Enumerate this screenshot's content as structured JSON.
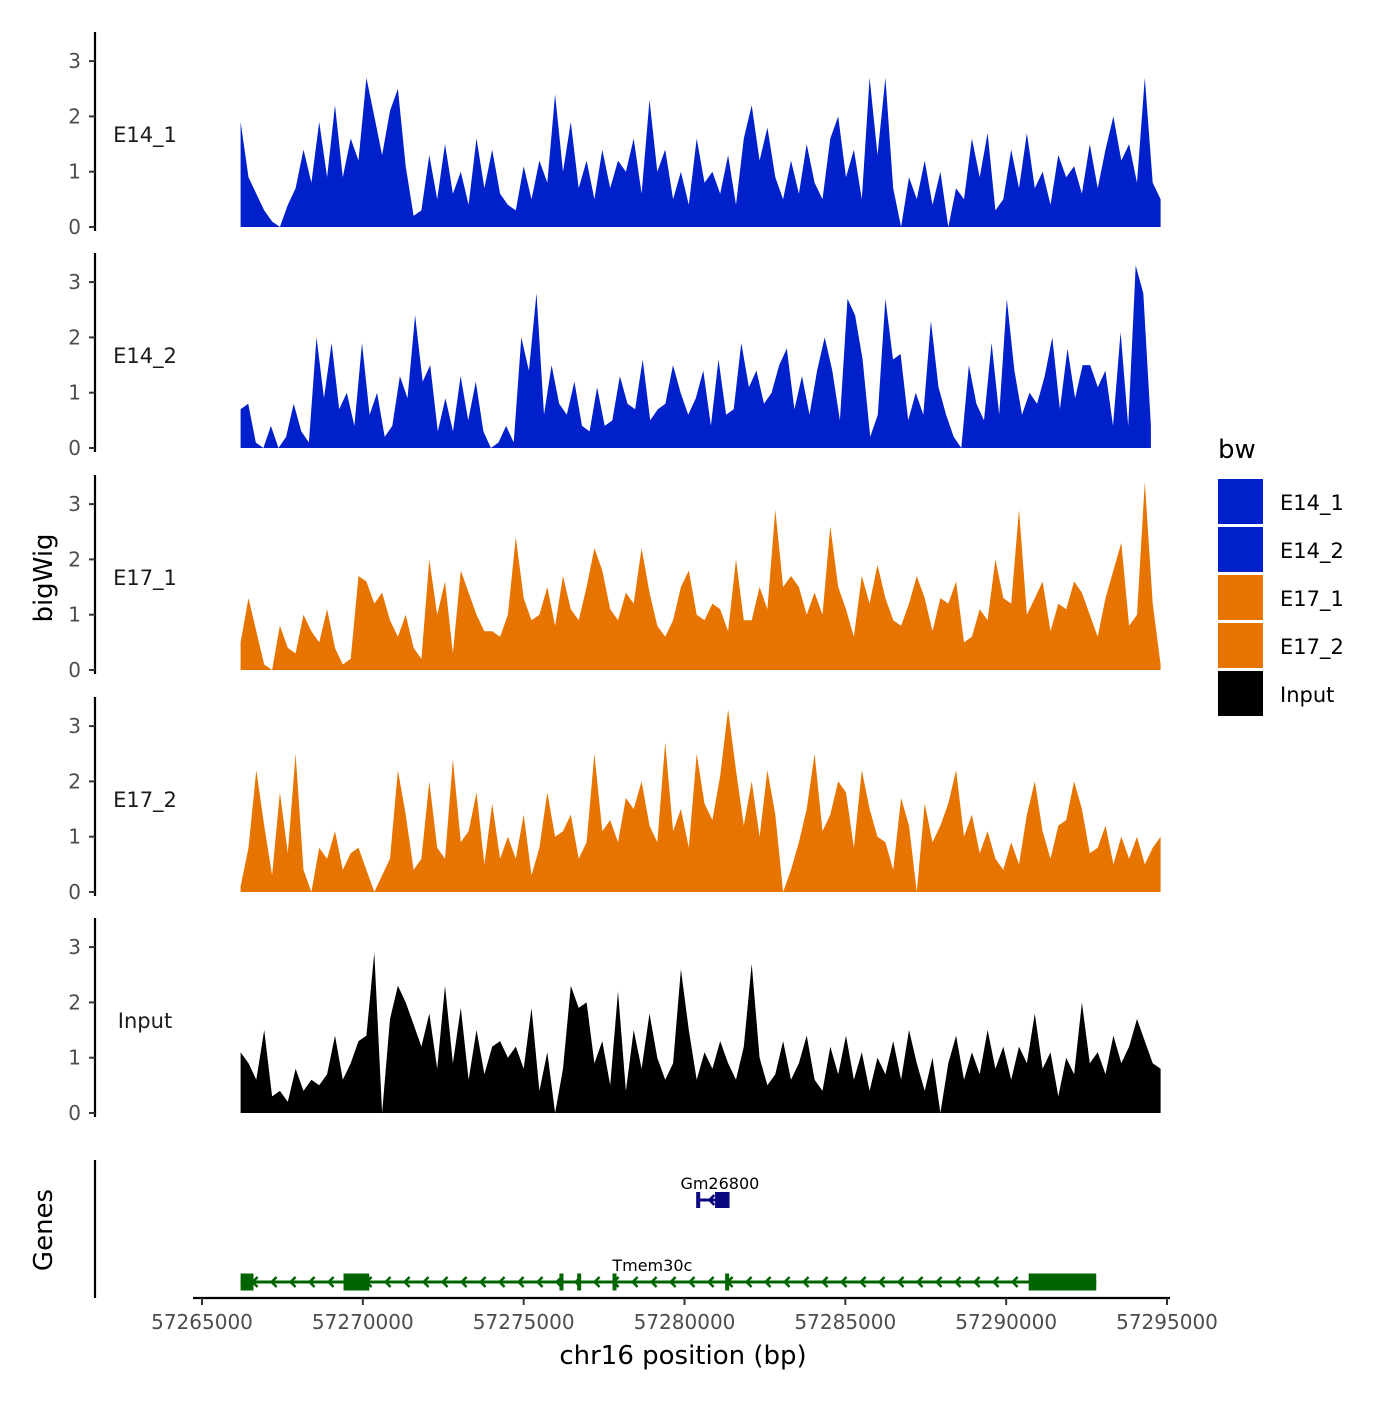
{
  "chart_data": {
    "type": "area",
    "chromosome": "chr16",
    "xlabel": "chr16 position (bp)",
    "ylabel": "bigWig",
    "genes_label": "Genes",
    "x_range": [
      57265000,
      57295000
    ],
    "x_ticks": [
      57265000,
      57270000,
      57275000,
      57280000,
      57285000,
      57290000,
      57295000
    ],
    "x_tick_labels": [
      "57265000",
      "57270000",
      "57275000",
      "57280000",
      "57285000",
      "57290000",
      "57295000"
    ],
    "y_range": [
      0,
      3.4
    ],
    "y_ticks": [
      0,
      1,
      2,
      3
    ],
    "y_tick_labels": [
      "0",
      "1",
      "2",
      "3"
    ],
    "legend": {
      "title": "bw",
      "entries": [
        {
          "label": "E14_1",
          "color": "#0020CC"
        },
        {
          "label": "E14_2",
          "color": "#0020CC"
        },
        {
          "label": "E17_1",
          "color": "#E87400"
        },
        {
          "label": "E17_2",
          "color": "#E87400"
        },
        {
          "label": "Input",
          "color": "#000000"
        }
      ]
    },
    "tracks": [
      {
        "name": "E14_1",
        "color": "#0020CC",
        "start": 57266200,
        "end": 57294800,
        "values": [
          1.9,
          0.9,
          0.6,
          0.3,
          0.1,
          0.0,
          0.4,
          0.7,
          1.4,
          0.8,
          1.9,
          0.9,
          2.2,
          0.9,
          1.6,
          1.2,
          2.7,
          2.0,
          1.3,
          2.1,
          2.5,
          1.1,
          0.2,
          0.3,
          1.3,
          0.5,
          1.5,
          0.6,
          1.0,
          0.4,
          1.6,
          0.7,
          1.4,
          0.6,
          0.4,
          0.3,
          1.1,
          0.5,
          1.2,
          0.8,
          2.4,
          1.0,
          1.9,
          0.7,
          1.2,
          0.5,
          1.4,
          0.7,
          1.2,
          1.0,
          1.6,
          0.6,
          2.3,
          1.0,
          1.4,
          0.5,
          1.0,
          0.4,
          1.6,
          0.8,
          1.0,
          0.6,
          1.3,
          0.4,
          1.6,
          2.2,
          1.2,
          1.8,
          0.9,
          0.5,
          1.2,
          0.6,
          1.5,
          0.8,
          0.5,
          1.6,
          2.0,
          0.9,
          1.4,
          0.5,
          2.7,
          1.3,
          2.7,
          0.7,
          0.0,
          0.9,
          0.5,
          1.2,
          0.4,
          1.0,
          0.0,
          0.7,
          0.5,
          1.6,
          0.9,
          1.7,
          0.3,
          0.5,
          1.4,
          0.7,
          1.7,
          0.7,
          1.0,
          0.4,
          1.3,
          0.9,
          1.1,
          0.6,
          1.5,
          0.7,
          1.4,
          2.0,
          1.2,
          1.5,
          0.8,
          2.7,
          0.8,
          0.5
        ]
      },
      {
        "name": "E14_2",
        "color": "#0020CC",
        "start": 57266200,
        "end": 57294500,
        "values": [
          0.7,
          0.8,
          0.1,
          0.0,
          0.4,
          0.0,
          0.2,
          0.8,
          0.3,
          0.1,
          2.0,
          0.9,
          1.9,
          0.7,
          1.0,
          0.4,
          1.9,
          0.6,
          1.0,
          0.2,
          0.4,
          1.3,
          0.9,
          2.4,
          1.2,
          1.5,
          0.3,
          0.9,
          0.3,
          1.3,
          0.5,
          1.2,
          0.3,
          0.0,
          0.1,
          0.4,
          0.1,
          2.0,
          1.4,
          2.8,
          0.6,
          1.5,
          0.8,
          0.6,
          1.2,
          0.4,
          0.3,
          1.1,
          0.4,
          0.5,
          1.3,
          0.8,
          0.7,
          1.6,
          0.5,
          0.7,
          0.8,
          1.5,
          1.0,
          0.6,
          0.9,
          1.4,
          0.4,
          1.6,
          0.6,
          0.7,
          1.9,
          1.1,
          1.4,
          0.8,
          1.0,
          1.5,
          1.8,
          0.7,
          1.3,
          0.6,
          1.4,
          2.0,
          1.4,
          0.5,
          2.7,
          2.4,
          1.6,
          0.2,
          0.6,
          2.7,
          1.6,
          1.7,
          0.5,
          1.0,
          0.6,
          2.3,
          1.1,
          0.6,
          0.2,
          0.0,
          1.5,
          0.8,
          0.5,
          1.9,
          0.6,
          2.7,
          1.4,
          0.6,
          1.0,
          0.8,
          1.3,
          2.0,
          0.7,
          1.8,
          0.9,
          1.5,
          1.5,
          1.1,
          1.4,
          0.4,
          2.1,
          0.4,
          3.3,
          2.8,
          0.4
        ]
      },
      {
        "name": "E17_1",
        "color": "#E87400",
        "start": 57266200,
        "end": 57294800,
        "values": [
          0.5,
          1.3,
          0.7,
          0.1,
          0.0,
          0.8,
          0.4,
          0.3,
          1.0,
          0.7,
          0.5,
          1.1,
          0.4,
          0.1,
          0.2,
          1.7,
          1.6,
          1.2,
          1.4,
          0.9,
          0.6,
          1.0,
          0.4,
          0.2,
          2.0,
          1.0,
          1.6,
          0.3,
          1.8,
          1.4,
          1.0,
          0.7,
          0.7,
          0.6,
          1.0,
          2.4,
          1.3,
          0.9,
          1.0,
          1.5,
          0.8,
          1.7,
          1.1,
          0.9,
          1.5,
          2.2,
          1.8,
          1.1,
          0.9,
          1.4,
          1.2,
          2.2,
          1.4,
          0.8,
          0.6,
          0.9,
          1.5,
          1.8,
          1.0,
          0.9,
          1.2,
          1.1,
          0.7,
          2.0,
          0.9,
          0.9,
          1.5,
          1.1,
          2.9,
          1.5,
          1.7,
          1.5,
          1.0,
          1.4,
          1.0,
          2.6,
          1.5,
          1.1,
          0.6,
          1.7,
          1.2,
          1.9,
          1.3,
          0.9,
          0.8,
          1.2,
          1.7,
          1.3,
          0.7,
          1.3,
          1.2,
          1.6,
          0.5,
          0.6,
          1.1,
          0.9,
          2.0,
          1.3,
          1.2,
          2.9,
          1.0,
          1.3,
          1.6,
          0.7,
          1.2,
          1.1,
          1.6,
          1.4,
          1.0,
          0.6,
          1.3,
          1.8,
          2.3,
          0.8,
          1.0,
          3.4,
          1.2,
          0.1
        ]
      },
      {
        "name": "E17_2",
        "color": "#E87400",
        "start": 57266200,
        "end": 57294800,
        "values": [
          0.1,
          0.8,
          2.2,
          1.2,
          0.3,
          1.8,
          0.7,
          2.5,
          0.4,
          0.0,
          0.8,
          0.6,
          1.1,
          0.4,
          0.7,
          0.8,
          0.4,
          0.0,
          0.3,
          0.6,
          2.2,
          1.4,
          0.4,
          0.6,
          2.0,
          0.8,
          0.6,
          2.4,
          0.9,
          1.1,
          1.8,
          0.5,
          1.6,
          0.6,
          1.0,
          0.6,
          1.4,
          0.3,
          0.8,
          1.8,
          1.0,
          1.1,
          1.4,
          0.6,
          0.9,
          2.5,
          1.1,
          1.3,
          0.9,
          1.7,
          1.5,
          2.0,
          1.2,
          0.9,
          2.7,
          1.1,
          1.5,
          0.8,
          2.5,
          1.6,
          1.3,
          2.1,
          3.3,
          2.2,
          1.2,
          2.0,
          1.0,
          2.2,
          1.4,
          0.0,
          0.4,
          0.9,
          1.5,
          2.5,
          1.1,
          1.4,
          2.0,
          1.8,
          0.8,
          2.2,
          1.5,
          1.0,
          0.9,
          0.4,
          1.7,
          1.2,
          0.0,
          1.6,
          0.9,
          1.2,
          1.6,
          2.2,
          1.0,
          1.4,
          0.7,
          1.1,
          0.6,
          0.4,
          0.9,
          0.5,
          1.4,
          2.0,
          1.1,
          0.6,
          1.2,
          1.3,
          2.0,
          1.5,
          0.7,
          0.8,
          1.2,
          0.5,
          1.0,
          0.6,
          1.0,
          0.5,
          0.8,
          1.0
        ]
      },
      {
        "name": "Input",
        "color": "#000000",
        "start": 57266200,
        "end": 57294800,
        "values": [
          1.1,
          0.9,
          0.6,
          1.5,
          0.3,
          0.4,
          0.2,
          0.8,
          0.4,
          0.6,
          0.5,
          0.7,
          1.4,
          0.6,
          0.9,
          1.3,
          1.4,
          2.9,
          0.0,
          1.7,
          2.3,
          2.0,
          1.6,
          1.2,
          1.8,
          0.8,
          2.3,
          0.9,
          1.9,
          0.6,
          1.5,
          0.7,
          1.2,
          1.3,
          1.0,
          1.2,
          0.8,
          1.9,
          0.4,
          1.1,
          0.0,
          0.8,
          2.3,
          1.9,
          2.0,
          0.9,
          1.3,
          0.5,
          2.2,
          0.4,
          1.5,
          0.8,
          1.8,
          1.0,
          0.6,
          0.9,
          2.6,
          1.5,
          0.6,
          1.1,
          0.8,
          1.3,
          0.9,
          0.6,
          1.2,
          2.7,
          1.0,
          0.5,
          0.7,
          1.3,
          0.6,
          0.9,
          1.4,
          0.6,
          0.4,
          1.2,
          0.7,
          1.4,
          0.6,
          1.1,
          0.4,
          1.0,
          0.7,
          1.3,
          0.6,
          1.5,
          0.9,
          0.4,
          1.0,
          0.0,
          0.9,
          1.4,
          0.6,
          1.1,
          0.7,
          1.5,
          0.8,
          1.2,
          0.6,
          1.2,
          0.9,
          1.8,
          0.8,
          1.1,
          0.3,
          1.0,
          0.7,
          2.0,
          0.9,
          1.1,
          0.7,
          1.4,
          0.9,
          1.2,
          1.7,
          1.3,
          0.9,
          0.8
        ]
      }
    ],
    "genes": [
      {
        "name": "Gm26800",
        "color": "#0A0A80",
        "strand": "-",
        "row": 1,
        "start": 57280400,
        "end": 57281400,
        "exons": [
          [
            57280400,
            57280450
          ],
          [
            57280950,
            57281400
          ]
        ],
        "label_position": 57281100
      },
      {
        "name": "Tmem30c",
        "color": "#006400",
        "strand": "-",
        "row": 2,
        "start": 57266200,
        "end": 57292800,
        "exons": [
          [
            57266200,
            57266600
          ],
          [
            57269400,
            57270200
          ],
          [
            57276150,
            57276200
          ],
          [
            57276700,
            57276750
          ],
          [
            57277800,
            57277850
          ],
          [
            57281300,
            57281350
          ],
          [
            57290700,
            57292800
          ]
        ],
        "label_position": 57279000
      }
    ]
  }
}
